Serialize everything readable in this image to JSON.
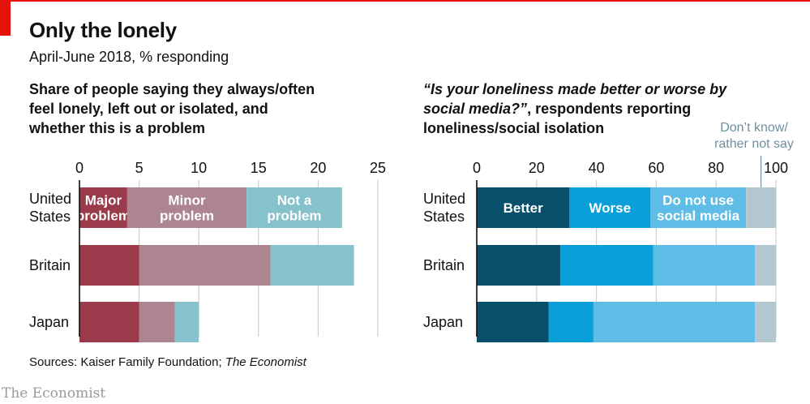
{
  "header": {
    "title": "Only the lonely",
    "subtitle": "April-June 2018, % responding"
  },
  "left_panel": {
    "title_lines": [
      "Share of people saying they always/often",
      "feel lonely, left out or isolated, and",
      "whether this is a problem"
    ]
  },
  "right_panel": {
    "title_quote": "“Is your loneliness made better or worse by",
    "title_quote_line2": "social media?”",
    "title_rest_line2": ", respondents reporting",
    "title_line3": "loneliness/social isolation",
    "dont_know_note": [
      "Don’t know/",
      "rather not say"
    ]
  },
  "colors": {
    "major": "#9b3a4a",
    "minor": "#ad8590",
    "not_problem": "#86c2cb",
    "better": "#074f6b",
    "worse": "#0a9fd9",
    "no_social": "#5ebde6",
    "dont_know": "#b3c7d1",
    "grid": "#cfcfcf",
    "axis": "#111111"
  },
  "chart_data": [
    {
      "type": "bar",
      "orientation": "horizontal",
      "stacked": true,
      "categories": [
        [
          "United",
          "States"
        ],
        [
          "Britain"
        ],
        [
          "Japan"
        ]
      ],
      "series": [
        {
          "name": [
            "Major",
            "problem"
          ],
          "values": [
            4,
            5,
            5
          ]
        },
        {
          "name": [
            "Minor",
            "problem"
          ],
          "values": [
            10,
            11,
            3
          ]
        },
        {
          "name": [
            "Not a",
            "problem"
          ],
          "values": [
            8,
            7,
            2
          ]
        }
      ],
      "xlim": [
        0,
        25
      ],
      "ticks": [
        "0",
        "5",
        "10",
        "15",
        "20",
        "25"
      ],
      "tick_values": [
        0,
        5,
        10,
        15,
        20,
        25
      ],
      "grid": true,
      "legend": "inside-first-bar"
    },
    {
      "type": "bar",
      "orientation": "horizontal",
      "stacked": true,
      "categories": [
        [
          "United",
          "States"
        ],
        [
          "Britain"
        ],
        [
          "Japan"
        ]
      ],
      "series": [
        {
          "name": [
            "Better"
          ],
          "values": [
            31,
            28,
            24
          ]
        },
        {
          "name": [
            "Worse"
          ],
          "values": [
            27,
            31,
            15
          ]
        },
        {
          "name": [
            "Do not use",
            "social media"
          ],
          "values": [
            32,
            34,
            54
          ]
        },
        {
          "name": [],
          "values": [
            10,
            7,
            7
          ]
        }
      ],
      "xlim": [
        0,
        100
      ],
      "ticks": [
        "0",
        "20",
        "40",
        "60",
        "80",
        "100"
      ],
      "tick_values": [
        0,
        20,
        40,
        60,
        80,
        100
      ],
      "grid": true,
      "legend": "inside-first-bar"
    }
  ],
  "footer": {
    "source_prefix": "Sources: Kaiser Family Foundation; ",
    "source_italic": "The Economist",
    "brand": "The Economist"
  }
}
